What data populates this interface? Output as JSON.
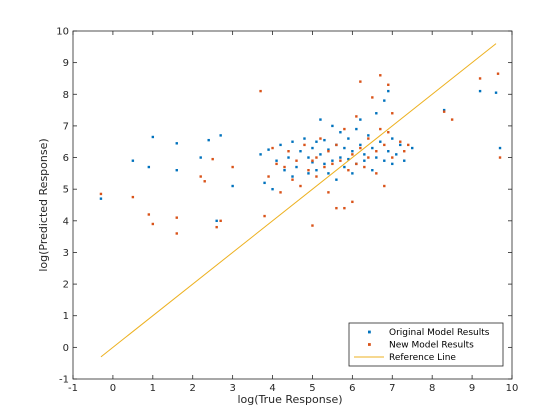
{
  "chart_data": {
    "type": "scatter",
    "xlabel": "log(True Response)",
    "ylabel": "log(Predicted Response)",
    "xlim": [
      -1,
      10
    ],
    "ylim": [
      -1,
      10
    ],
    "xticks": [
      -1,
      0,
      1,
      2,
      3,
      4,
      5,
      6,
      7,
      8,
      9,
      10
    ],
    "yticks": [
      -1,
      0,
      1,
      2,
      3,
      4,
      5,
      6,
      7,
      8,
      9,
      10
    ],
    "grid": false,
    "legend_position": "bottom-right",
    "series": [
      {
        "name": "Original Model Results",
        "color": "#0072BD",
        "marker": "point",
        "points": [
          [
            -0.3,
            4.7
          ],
          [
            0.5,
            5.9
          ],
          [
            0.9,
            5.7
          ],
          [
            1.0,
            6.65
          ],
          [
            1.6,
            5.6
          ],
          [
            1.6,
            6.45
          ],
          [
            2.2,
            6.0
          ],
          [
            2.4,
            6.55
          ],
          [
            2.6,
            4.0
          ],
          [
            2.7,
            6.7
          ],
          [
            3.0,
            5.1
          ],
          [
            3.7,
            6.1
          ],
          [
            3.8,
            5.2
          ],
          [
            3.9,
            6.25
          ],
          [
            4.0,
            5.0
          ],
          [
            4.1,
            5.9
          ],
          [
            4.2,
            6.4
          ],
          [
            4.3,
            5.6
          ],
          [
            4.4,
            6.0
          ],
          [
            4.5,
            6.5
          ],
          [
            4.5,
            5.4
          ],
          [
            4.6,
            5.7
          ],
          [
            4.7,
            6.2
          ],
          [
            4.8,
            6.6
          ],
          [
            4.9,
            5.5
          ],
          [
            4.9,
            6.0
          ],
          [
            5.0,
            6.3
          ],
          [
            5.0,
            5.85
          ],
          [
            5.1,
            6.5
          ],
          [
            5.1,
            5.6
          ],
          [
            5.2,
            6.1
          ],
          [
            5.2,
            7.2
          ],
          [
            5.3,
            5.8
          ],
          [
            5.3,
            6.55
          ],
          [
            5.4,
            5.5
          ],
          [
            5.4,
            6.25
          ],
          [
            5.5,
            7.0
          ],
          [
            5.5,
            5.9
          ],
          [
            5.6,
            6.4
          ],
          [
            5.6,
            5.3
          ],
          [
            5.7,
            6.0
          ],
          [
            5.7,
            6.8
          ],
          [
            5.8,
            5.7
          ],
          [
            5.8,
            6.3
          ],
          [
            5.9,
            6.6
          ],
          [
            5.9,
            5.95
          ],
          [
            6.0,
            6.2
          ],
          [
            6.0,
            5.5
          ],
          [
            6.1,
            6.9
          ],
          [
            6.1,
            5.8
          ],
          [
            6.2,
            6.4
          ],
          [
            6.2,
            7.2
          ],
          [
            6.3,
            5.9
          ],
          [
            6.3,
            6.1
          ],
          [
            6.4,
            6.7
          ],
          [
            6.5,
            5.6
          ],
          [
            6.5,
            6.3
          ],
          [
            6.6,
            7.4
          ],
          [
            6.6,
            6.0
          ],
          [
            6.7,
            6.5
          ],
          [
            6.8,
            5.9
          ],
          [
            6.8,
            7.8
          ],
          [
            6.9,
            6.2
          ],
          [
            6.9,
            8.1
          ],
          [
            7.0,
            5.8
          ],
          [
            7.0,
            6.6
          ],
          [
            7.1,
            6.1
          ],
          [
            7.2,
            6.4
          ],
          [
            7.3,
            5.9
          ],
          [
            7.5,
            6.3
          ],
          [
            8.3,
            7.5
          ],
          [
            9.2,
            8.1
          ],
          [
            9.6,
            8.05
          ],
          [
            9.7,
            6.3
          ]
        ]
      },
      {
        "name": "New Model Results",
        "color": "#D95319",
        "marker": "point",
        "points": [
          [
            -0.3,
            4.85
          ],
          [
            0.5,
            4.75
          ],
          [
            0.9,
            4.2
          ],
          [
            1.0,
            3.9
          ],
          [
            1.6,
            3.6
          ],
          [
            1.6,
            4.1
          ],
          [
            2.2,
            5.4
          ],
          [
            2.3,
            5.25
          ],
          [
            2.5,
            5.95
          ],
          [
            2.6,
            3.8
          ],
          [
            2.7,
            4.0
          ],
          [
            3.0,
            5.7
          ],
          [
            3.7,
            8.1
          ],
          [
            3.8,
            4.15
          ],
          [
            3.9,
            5.4
          ],
          [
            4.0,
            6.3
          ],
          [
            4.1,
            5.8
          ],
          [
            4.2,
            4.9
          ],
          [
            4.3,
            5.7
          ],
          [
            4.4,
            6.2
          ],
          [
            4.5,
            5.3
          ],
          [
            4.6,
            5.9
          ],
          [
            4.7,
            5.1
          ],
          [
            4.8,
            6.4
          ],
          [
            4.9,
            5.6
          ],
          [
            5.0,
            5.9
          ],
          [
            5.0,
            3.85
          ],
          [
            5.1,
            6.0
          ],
          [
            5.1,
            5.4
          ],
          [
            5.2,
            6.6
          ],
          [
            5.3,
            5.7
          ],
          [
            5.4,
            6.2
          ],
          [
            5.4,
            4.9
          ],
          [
            5.5,
            5.8
          ],
          [
            5.6,
            6.4
          ],
          [
            5.6,
            4.4
          ],
          [
            5.7,
            5.9
          ],
          [
            5.8,
            6.9
          ],
          [
            5.8,
            4.4
          ],
          [
            5.9,
            5.6
          ],
          [
            6.0,
            6.1
          ],
          [
            6.0,
            4.6
          ],
          [
            6.1,
            7.3
          ],
          [
            6.1,
            5.8
          ],
          [
            6.2,
            6.3
          ],
          [
            6.2,
            8.4
          ],
          [
            6.3,
            5.7
          ],
          [
            6.4,
            6.6
          ],
          [
            6.4,
            6.0
          ],
          [
            6.5,
            7.9
          ],
          [
            6.6,
            5.5
          ],
          [
            6.6,
            6.2
          ],
          [
            6.7,
            8.6
          ],
          [
            6.7,
            6.9
          ],
          [
            6.8,
            6.4
          ],
          [
            6.8,
            5.1
          ],
          [
            6.9,
            8.3
          ],
          [
            6.9,
            6.8
          ],
          [
            7.0,
            7.4
          ],
          [
            7.0,
            6.0
          ],
          [
            7.2,
            6.5
          ],
          [
            7.3,
            6.2
          ],
          [
            7.4,
            6.4
          ],
          [
            8.3,
            7.45
          ],
          [
            8.5,
            7.2
          ],
          [
            9.2,
            8.5
          ],
          [
            9.65,
            8.65
          ],
          [
            9.7,
            6.0
          ]
        ]
      },
      {
        "name": "Reference Line",
        "color": "#EDB120",
        "marker": "line",
        "points": [
          [
            -0.3,
            -0.3
          ],
          [
            9.6,
            9.6
          ]
        ]
      }
    ]
  }
}
